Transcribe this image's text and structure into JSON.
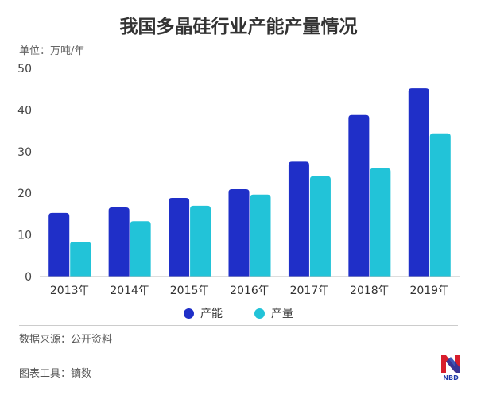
{
  "title": "我国多晶硅行业产能产量情况",
  "unit_label": "单位：万吨/年",
  "source_label": "数据来源：公开资料",
  "tool_label": "图表工具：镝数",
  "logo_text": "NBD",
  "colors": {
    "capacity": "#1f2fc8",
    "output": "#22c3d8",
    "axis": "#bbbbbb"
  },
  "chart_data": {
    "type": "bar",
    "title": "我国多晶硅行业产能产量情况",
    "ylabel": "单位：万吨/年",
    "xlabel": "",
    "categories": [
      "2013年",
      "2014年",
      "2015年",
      "2016年",
      "2017年",
      "2018年",
      "2019年"
    ],
    "series": [
      {
        "name": "产能",
        "values": [
          15.3,
          16.6,
          18.9,
          21.0,
          27.6,
          38.8,
          45.2
        ]
      },
      {
        "name": "产量",
        "values": [
          8.4,
          13.3,
          17.0,
          19.7,
          24.1,
          26.0,
          34.4
        ]
      }
    ],
    "ylim": [
      0,
      50
    ],
    "yticks": [
      0,
      10,
      20,
      30,
      40,
      50
    ],
    "grid": false,
    "legend": "bottom-center"
  }
}
